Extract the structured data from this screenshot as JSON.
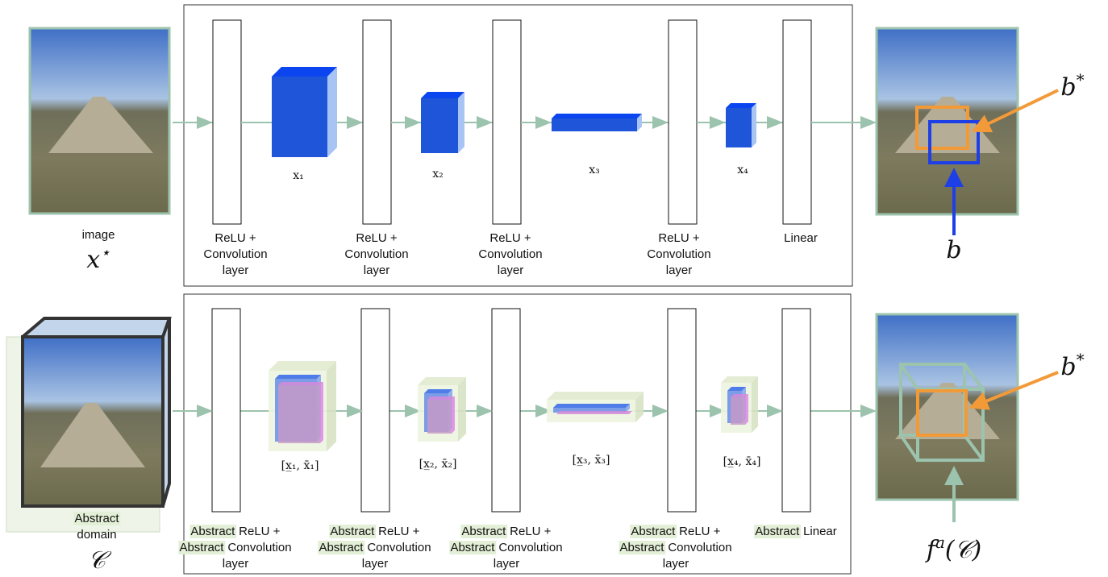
{
  "top": {
    "input": {
      "label": "image",
      "symbol": {
        "base": "x",
        "sup": "⋆"
      }
    },
    "layers": [
      {
        "lines": [
          "ReLU +",
          "Convolution",
          "layer"
        ]
      },
      {
        "lines": [
          "ReLU +",
          "Convolution",
          "layer"
        ]
      },
      {
        "lines": [
          "ReLU +",
          "Convolution",
          "layer"
        ]
      },
      {
        "lines": [
          "ReLU +",
          "Convolution",
          "layer"
        ]
      },
      {
        "lines": [
          "Linear"
        ]
      }
    ],
    "tensors": [
      "x₁",
      "x₂",
      "x₃",
      "x₄"
    ],
    "output": {
      "target": {
        "base": "b",
        "sup": "*"
      },
      "prediction": "b"
    }
  },
  "bottom": {
    "input": {
      "label": [
        {
          "highlight": "Abstract"
        },
        {
          "text": "domain"
        }
      ],
      "symbol": "𝒞"
    },
    "layers": [
      {
        "lines": [
          {
            "highlight": "Abstract",
            "text": "ReLU +"
          },
          {
            "highlight": "Abstract",
            "text": "Convolution"
          },
          {
            "text": "layer"
          }
        ]
      },
      {
        "lines": [
          {
            "highlight": "Abstract",
            "text": "ReLU +"
          },
          {
            "highlight": "Abstract",
            "text": "Convolution"
          },
          {
            "text": "layer"
          }
        ]
      },
      {
        "lines": [
          {
            "highlight": "Abstract",
            "text": "ReLU +"
          },
          {
            "highlight": "Abstract",
            "text": "Convolution"
          },
          {
            "text": "layer"
          }
        ]
      },
      {
        "lines": [
          {
            "highlight": "Abstract",
            "text": "ReLU +"
          },
          {
            "highlight": "Abstract",
            "text": "Convolution"
          },
          {
            "text": "layer"
          }
        ]
      },
      {
        "lines": [
          {
            "highlight": "Abstract",
            "text": "Linear"
          }
        ]
      }
    ],
    "tensors": [
      "[x̲₁, x̄₁]",
      "[x̲₂, x̄₂]",
      "[x̲₃, x̄₃]",
      "[x̲₄, x̄₄]"
    ],
    "output": {
      "target": {
        "base": "b",
        "sup": "*"
      },
      "prediction": {
        "base": "f",
        "sup": "a",
        "rest": "(𝒞)"
      }
    }
  }
}
